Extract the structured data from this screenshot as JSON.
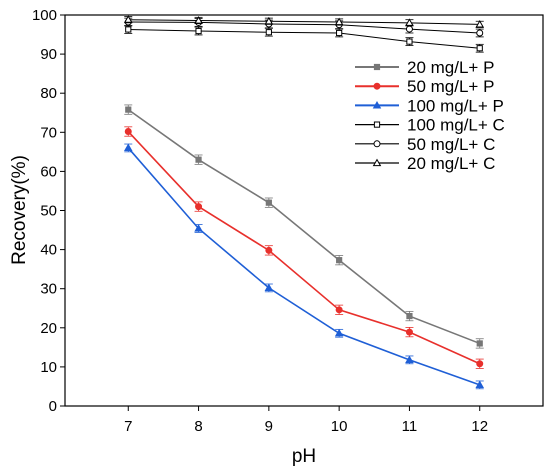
{
  "chart_data": {
    "type": "line",
    "xlabel": "pH",
    "ylabel": "Recovery(%)",
    "x": [
      7,
      8,
      9,
      10,
      11,
      12
    ],
    "xlim": [
      6.1,
      12.9
    ],
    "ylim": [
      0,
      100
    ],
    "xticks": [
      "7",
      "8",
      "9",
      "10",
      "11",
      "12"
    ],
    "yticks": [
      "0",
      "10",
      "20",
      "30",
      "40",
      "50",
      "60",
      "70",
      "80",
      "90",
      "100"
    ],
    "legend_position": "top-right",
    "series": [
      {
        "name": "20 mg/L+ P",
        "color": "#777777",
        "marker": "square",
        "filled": true,
        "values": [
          75.8,
          63.0,
          52.0,
          37.3,
          23.0,
          16.0
        ],
        "errors": [
          1.2,
          1.2,
          1.2,
          1.2,
          1.2,
          1.2
        ]
      },
      {
        "name": "50 mg/L+ P",
        "color": "#e8302c",
        "marker": "circle",
        "filled": true,
        "values": [
          70.2,
          51.0,
          39.8,
          24.6,
          18.9,
          10.8
        ],
        "errors": [
          1.2,
          1.2,
          1.2,
          1.2,
          1.2,
          1.2
        ]
      },
      {
        "name": "100 mg/L+ P",
        "color": "#1f5fd6",
        "marker": "triangle",
        "filled": true,
        "values": [
          66.0,
          45.4,
          30.2,
          18.6,
          11.8,
          5.4
        ],
        "errors": [
          1.0,
          1.0,
          1.0,
          1.0,
          1.0,
          1.0
        ]
      },
      {
        "name": "100 mg/L+ C",
        "color": "#000000",
        "marker": "square",
        "filled": false,
        "values": [
          96.3,
          95.9,
          95.6,
          95.4,
          93.2,
          91.5
        ],
        "errors": [
          1.0,
          1.0,
          1.0,
          1.0,
          1.0,
          1.0
        ]
      },
      {
        "name": "50 mg/L+ C",
        "color": "#000000",
        "marker": "circle",
        "filled": false,
        "values": [
          98.2,
          98.1,
          97.7,
          97.5,
          96.4,
          95.4
        ],
        "errors": [
          1.0,
          1.0,
          1.0,
          1.0,
          1.0,
          1.0
        ]
      },
      {
        "name": "20 mg/L+ C",
        "color": "#000000",
        "marker": "triangle",
        "filled": false,
        "values": [
          98.8,
          98.6,
          98.4,
          98.2,
          98.0,
          97.6
        ],
        "errors": [
          0.8,
          0.8,
          0.8,
          0.8,
          0.8,
          0.8
        ]
      }
    ]
  }
}
